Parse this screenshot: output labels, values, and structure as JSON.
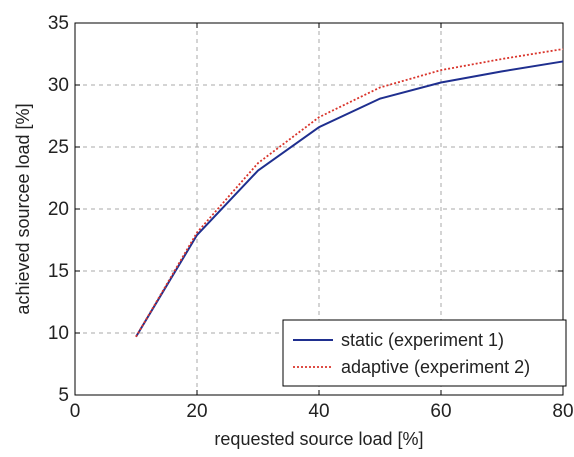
{
  "chart_data": {
    "type": "line",
    "xlabel": "requested source load [%]",
    "ylabel": "achieved sourcee load [%]",
    "xlim": [
      0,
      80
    ],
    "ylim": [
      5,
      35
    ],
    "xticks": [
      0,
      20,
      40,
      60,
      80
    ],
    "yticks": [
      5,
      10,
      15,
      20,
      25,
      30,
      35
    ],
    "grid": true,
    "legend_position": "bottom-right",
    "series": [
      {
        "name": "static (experiment 1)",
        "color": "#1f2f8f",
        "style": "solid",
        "x": [
          10,
          20,
          30,
          40,
          50,
          60,
          70,
          80
        ],
        "y": [
          9.7,
          17.9,
          23.1,
          26.6,
          28.9,
          30.2,
          31.1,
          31.9
        ]
      },
      {
        "name": "adaptive (experiment 2)",
        "color": "#d9342b",
        "style": "dotted",
        "x": [
          10,
          20,
          30,
          40,
          50,
          60,
          70,
          80
        ],
        "y": [
          9.7,
          18.1,
          23.7,
          27.4,
          29.8,
          31.2,
          32.1,
          32.9
        ]
      }
    ]
  }
}
